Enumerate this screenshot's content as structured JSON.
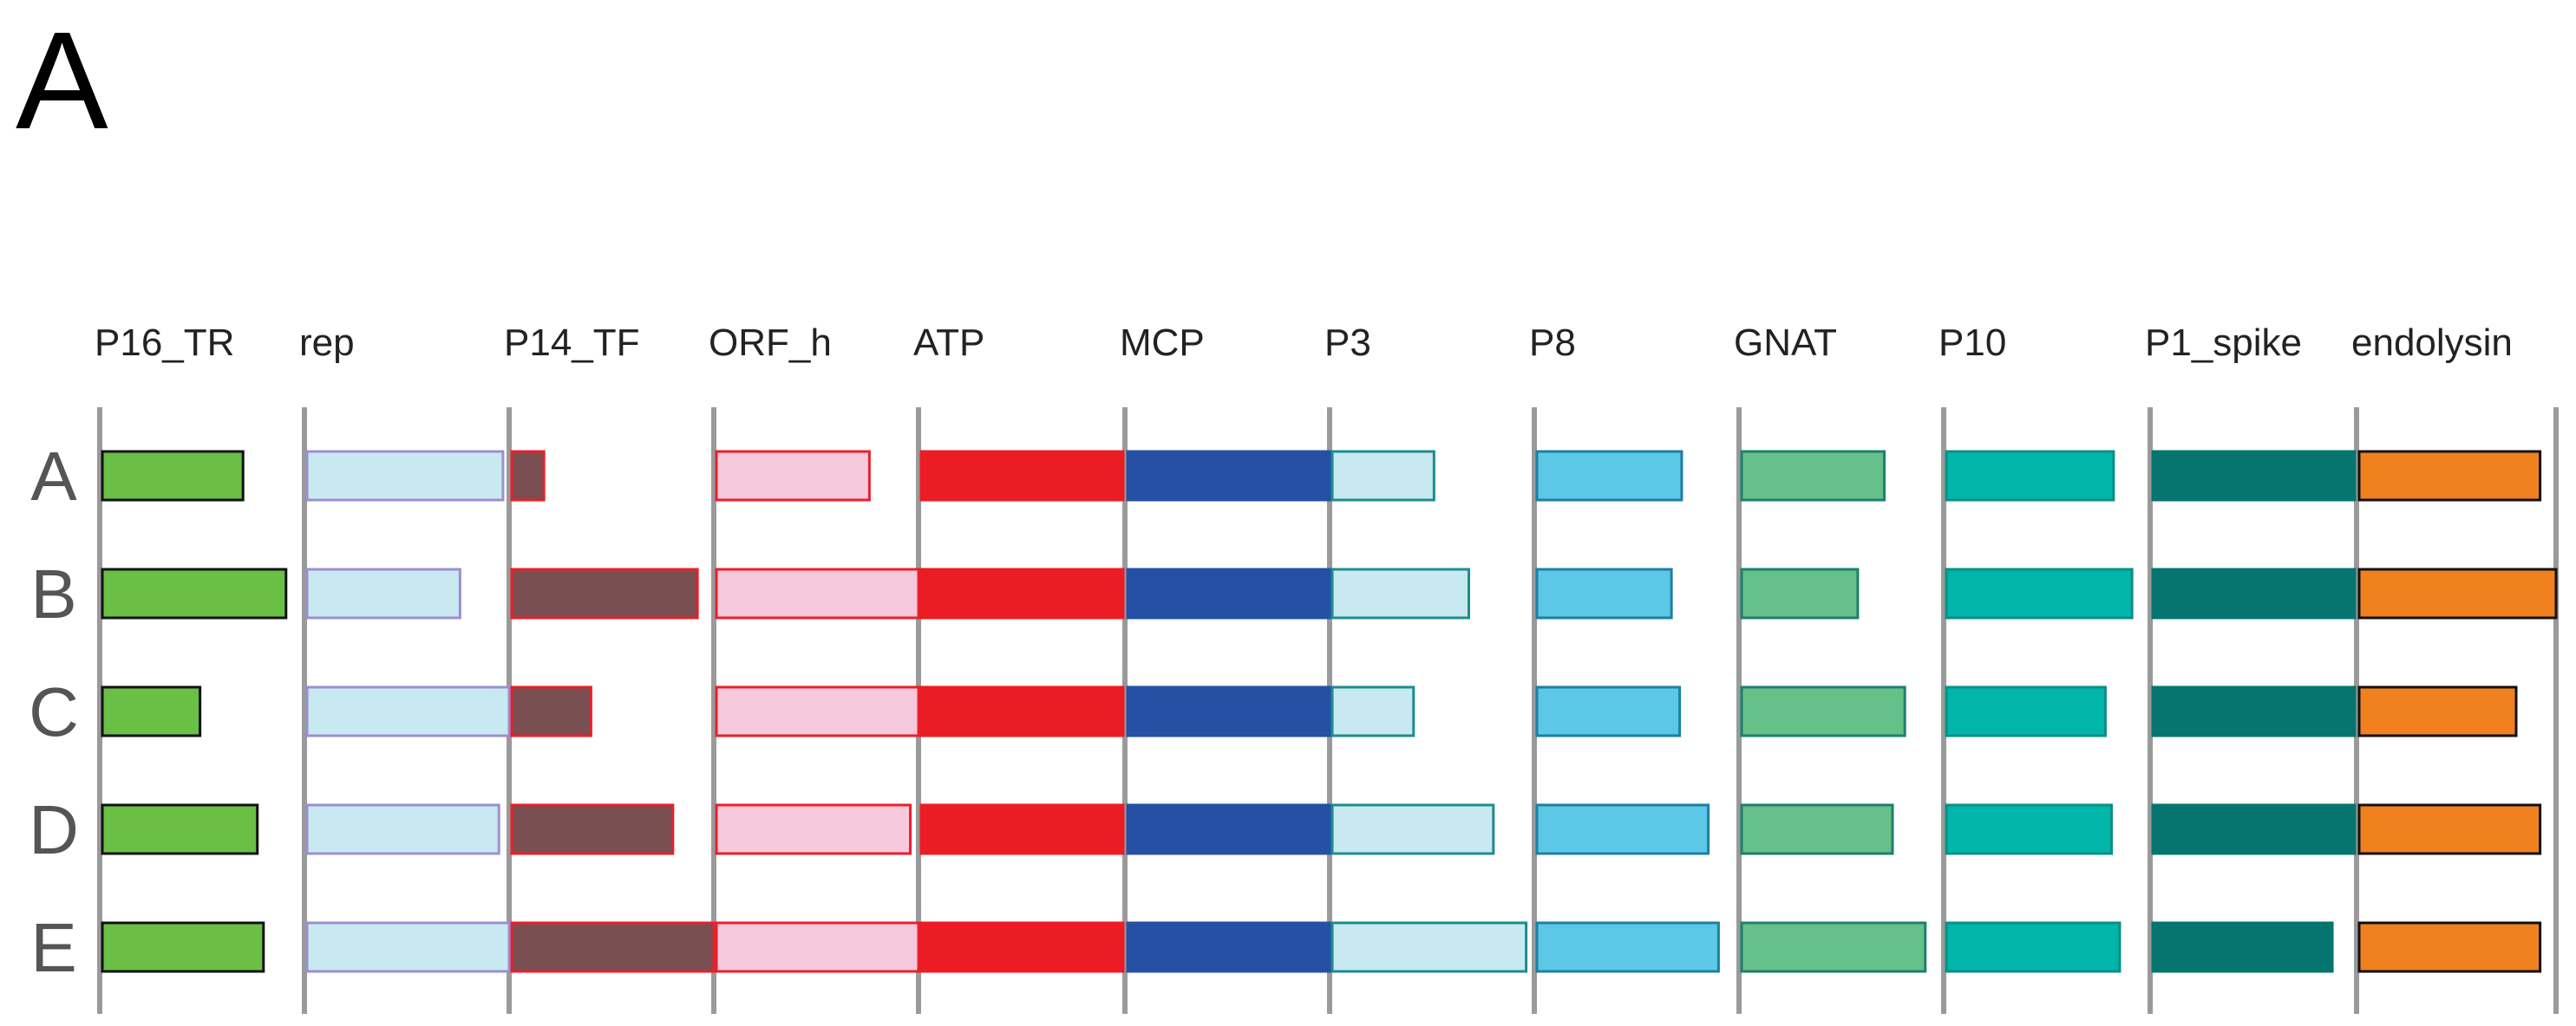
{
  "panel_label": "A",
  "columns": [
    {
      "label": "P16_TR",
      "fill": "#6abf45",
      "stroke": "#111111"
    },
    {
      "label": "rep",
      "fill": "#c8e9f2",
      "stroke": "#9b8fd0"
    },
    {
      "label": "P14_TF",
      "fill": "#7a4f52",
      "stroke": "#e8202a"
    },
    {
      "label": "ORF_h",
      "fill": "#f6c8dc",
      "stroke": "#e8202a"
    },
    {
      "label": "ATP",
      "fill": "#ec1c24",
      "stroke": "#ec1c24"
    },
    {
      "label": "MCP",
      "fill": "#2650a3",
      "stroke": "#2650a3"
    },
    {
      "label": "P3",
      "fill": "#c8e9f2",
      "stroke": "#1f8c8c"
    },
    {
      "label": "P8",
      "fill": "#5ac8e6",
      "stroke": "#1f7fa0"
    },
    {
      "label": "GNAT",
      "fill": "#66c08a",
      "stroke": "#1f7f6f"
    },
    {
      "label": "P10",
      "fill": "#00b5aa",
      "stroke": "#0a8f86"
    },
    {
      "label": "P1_spike",
      "fill": "#06756f",
      "stroke": "#06756f"
    },
    {
      "label": "endolysin",
      "fill": "#f1801f",
      "stroke": "#111111"
    }
  ],
  "rows": [
    {
      "label": "A",
      "lengths": [
        0.7,
        0.97,
        0.17,
        0.76,
        1.0,
        1.0,
        0.51,
        0.72,
        0.71,
        0.83,
        1.0,
        0.92
      ]
    },
    {
      "label": "B",
      "lengths": [
        0.91,
        0.76,
        0.92,
        1.0,
        1.0,
        1.0,
        0.68,
        0.67,
        0.58,
        0.92,
        1.0,
        1.0
      ]
    },
    {
      "label": "C",
      "lengths": [
        0.49,
        1.0,
        0.4,
        1.0,
        1.0,
        1.0,
        0.41,
        0.71,
        0.81,
        0.79,
        1.0,
        0.8
      ]
    },
    {
      "label": "D",
      "lengths": [
        0.77,
        0.95,
        0.8,
        0.96,
        1.0,
        1.0,
        0.8,
        0.85,
        0.75,
        0.82,
        1.0,
        0.92
      ]
    },
    {
      "label": "E",
      "lengths": [
        0.8,
        1.0,
        1.0,
        1.0,
        1.0,
        1.0,
        0.96,
        0.9,
        0.91,
        0.86,
        0.89,
        0.92
      ]
    }
  ],
  "separator_color": "#9a9a9a"
}
